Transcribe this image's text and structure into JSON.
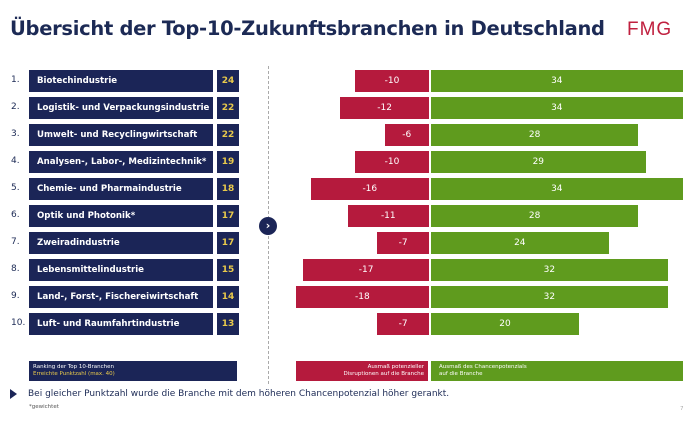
{
  "header": {
    "title": "Übersicht der Top-10-Zukunftsbranchen in Deutschland",
    "logo": "FMG"
  },
  "colors": {
    "navy": "#1b2557",
    "red": "#b51a3d",
    "green": "#5f9b1e",
    "score": "#e8c94b"
  },
  "chart_data": {
    "type": "bar",
    "categories": [
      "Biotechindustrie",
      "Logistik- und Verpackungsindustrie",
      "Umwelt- und Recyclingwirtschaft",
      "Analysen-, Labor-, Medizintechnik*",
      "Chemie- und Pharmaindustrie",
      "Optik und Photonik*",
      "Zweiradindustrie",
      "Lebensmittelindustrie",
      "Land-, Forst-, Fischereiwirtschaft",
      "Luft- und Raumfahrtindustrie"
    ],
    "ranks": [
      "1.",
      "2.",
      "3.",
      "4.",
      "5.",
      "6.",
      "7.",
      "8.",
      "9.",
      "10."
    ],
    "scores": [
      24,
      22,
      22,
      19,
      18,
      17,
      17,
      15,
      14,
      13
    ],
    "series": [
      {
        "name": "Ausmaß potenzieller Disruptionen auf die Branche",
        "values": [
          -10,
          -12,
          -6,
          -10,
          -16,
          -11,
          -7,
          -17,
          -18,
          -7
        ]
      },
      {
        "name": "Ausmaß des Chancenpotenzials auf die Branche",
        "values": [
          34,
          34,
          28,
          29,
          34,
          28,
          24,
          32,
          32,
          20
        ]
      }
    ]
  },
  "legend": {
    "ranking_line1": "Ranking der Top 10-Branchen",
    "ranking_line2": "Erreichte Punktzahl (max. 40)",
    "red_line1": "Ausmaß potenzieller",
    "red_line2": "Disruptionen auf die Branche",
    "green_line1": "Ausmaß des Chancenpotenzials",
    "green_line2": "auf die Branche"
  },
  "note": "Bei gleicher Punktzahl wurde die Branche mit dem höheren Chancenpotenzial höher gerankt.",
  "footnote": "*gewichtet",
  "page_number": "7"
}
